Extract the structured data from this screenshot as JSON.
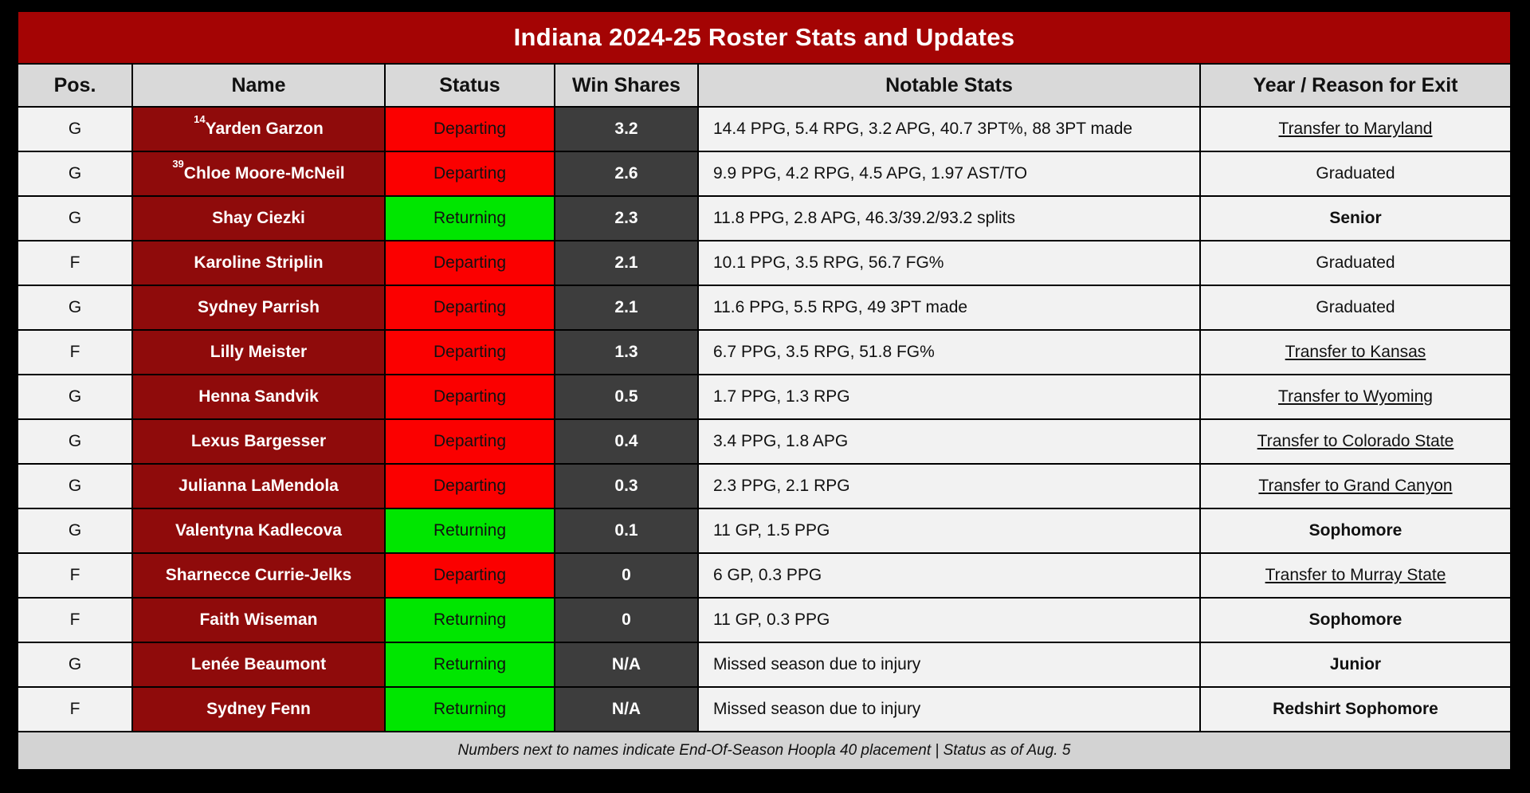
{
  "title": "Indiana 2024-25 Roster Stats and Updates",
  "footer_note": "Numbers next to names indicate End-Of-Season Hoopla 40 placement | Status as of Aug. 5",
  "colors": {
    "banner_red": "#A40404",
    "name_cell_maroon": "#8F0B0B",
    "departing_red": "#FB0000",
    "returning_green": "#00E600",
    "win_shares_gray": "#3D3D3D",
    "row_bg": "#F2F2F2",
    "header_bg": "#D9D9D9",
    "footer_bg": "#D3D3D3",
    "page_bg": "#000000"
  },
  "chart_data": {
    "type": "table",
    "title": "Indiana 2024-25 Roster Stats and Updates",
    "columns": [
      "Pos.",
      "Name",
      "Status",
      "Win Shares",
      "Notable Stats",
      "Year / Reason for Exit"
    ],
    "rows": [
      {
        "pos": "G",
        "rank": "14",
        "name": "Yarden Garzon",
        "status": "Departing",
        "win_shares": "3.2",
        "stats": "14.4 PPG, 5.4 RPG, 3.2 APG, 40.7 3PT%, 88 3PT made",
        "exit": "Transfer to Maryland",
        "exit_style": "transfer"
      },
      {
        "pos": "G",
        "rank": "39",
        "name": "Chloe Moore-McNeil",
        "status": "Departing",
        "win_shares": "2.6",
        "stats": "9.9 PPG, 4.2 RPG, 4.5 APG, 1.97 AST/TO",
        "exit": "Graduated",
        "exit_style": "plain"
      },
      {
        "pos": "G",
        "rank": "",
        "name": "Shay Ciezki",
        "status": "Returning",
        "win_shares": "2.3",
        "stats": "11.8 PPG, 2.8 APG, 46.3/39.2/93.2 splits",
        "exit": "Senior",
        "exit_style": "bold"
      },
      {
        "pos": "F",
        "rank": "",
        "name": "Karoline Striplin",
        "status": "Departing",
        "win_shares": "2.1",
        "stats": "10.1 PPG, 3.5 RPG, 56.7 FG%",
        "exit": "Graduated",
        "exit_style": "plain"
      },
      {
        "pos": "G",
        "rank": "",
        "name": "Sydney Parrish",
        "status": "Departing",
        "win_shares": "2.1",
        "stats": "11.6 PPG, 5.5 RPG, 49 3PT made",
        "exit": "Graduated",
        "exit_style": "plain"
      },
      {
        "pos": "F",
        "rank": "",
        "name": "Lilly Meister",
        "status": "Departing",
        "win_shares": "1.3",
        "stats": "6.7 PPG, 3.5 RPG, 51.8 FG%",
        "exit": "Transfer to Kansas",
        "exit_style": "transfer"
      },
      {
        "pos": "G",
        "rank": "",
        "name": "Henna Sandvik",
        "status": "Departing",
        "win_shares": "0.5",
        "stats": "1.7 PPG, 1.3 RPG",
        "exit": "Transfer to Wyoming",
        "exit_style": "transfer"
      },
      {
        "pos": "G",
        "rank": "",
        "name": "Lexus Bargesser",
        "status": "Departing",
        "win_shares": "0.4",
        "stats": "3.4 PPG, 1.8 APG",
        "exit": "Transfer to Colorado State",
        "exit_style": "transfer"
      },
      {
        "pos": "G",
        "rank": "",
        "name": "Julianna LaMendola",
        "status": "Departing",
        "win_shares": "0.3",
        "stats": "2.3 PPG, 2.1 RPG",
        "exit": "Transfer to Grand Canyon",
        "exit_style": "transfer"
      },
      {
        "pos": "G",
        "rank": "",
        "name": "Valentyna Kadlecova",
        "status": "Returning",
        "win_shares": "0.1",
        "stats": "11 GP, 1.5 PPG",
        "exit": "Sophomore",
        "exit_style": "bold"
      },
      {
        "pos": "F",
        "rank": "",
        "name": "Sharnecce Currie-Jelks",
        "status": "Departing",
        "win_shares": "0",
        "stats": "6 GP, 0.3 PPG",
        "exit": "Transfer to Murray State",
        "exit_style": "transfer"
      },
      {
        "pos": "F",
        "rank": "",
        "name": "Faith Wiseman",
        "status": "Returning",
        "win_shares": "0",
        "stats": "11 GP, 0.3 PPG",
        "exit": "Sophomore",
        "exit_style": "bold"
      },
      {
        "pos": "G",
        "rank": "",
        "name": "Lenée Beaumont",
        "status": "Returning",
        "win_shares": "N/A",
        "stats": "Missed season due to injury",
        "exit": "Junior",
        "exit_style": "bold"
      },
      {
        "pos": "F",
        "rank": "",
        "name": "Sydney Fenn",
        "status": "Returning",
        "win_shares": "N/A",
        "stats": "Missed season due to injury",
        "exit": "Redshirt Sophomore",
        "exit_style": "bold"
      }
    ],
    "footnote": "Numbers next to names indicate End-Of-Season Hoopla 40 placement | Status as of Aug. 5"
  }
}
